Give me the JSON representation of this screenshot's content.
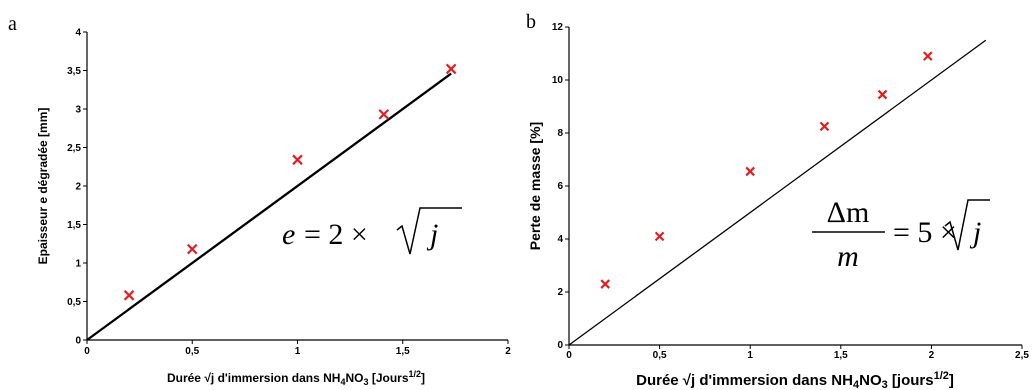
{
  "chart_data": [
    {
      "panel": "a",
      "type": "scatter",
      "xlabel": "Durée √j d'immersion dans NH₄NO₃ [Jours¹ᐟ²]",
      "ylabel": "Epaisseur e dégradée [mm]",
      "xlim": [
        0,
        2
      ],
      "ylim": [
        0,
        4
      ],
      "xticks": [
        "0",
        "0,5",
        "1",
        "1,5",
        "2"
      ],
      "yticks": [
        "0",
        "0,5",
        "1",
        "1,5",
        "2",
        "2,5",
        "3",
        "3,5",
        "4"
      ],
      "x": [
        0.2,
        0.5,
        1.0,
        1.41,
        1.73
      ],
      "y": [
        0.58,
        1.18,
        2.34,
        2.93,
        3.52
      ],
      "fit_line": {
        "slope": 2,
        "x_range": [
          0,
          1.73
        ]
      },
      "equation": "e = 2 × √j",
      "marker_color": "#e02020",
      "line_color": "#000000",
      "grid": false
    },
    {
      "panel": "b",
      "type": "scatter",
      "xlabel": "Durée √j d'immersion dans NH₄NO₃ [jours¹ᐟ²]",
      "ylabel": "Perte de masse [%]",
      "xlim": [
        0,
        2.5
      ],
      "ylim": [
        0,
        12
      ],
      "xticks": [
        "0",
        "0,5",
        "1",
        "1,5",
        "2",
        "2,5"
      ],
      "yticks": [
        "0",
        "2",
        "4",
        "6",
        "8",
        "10",
        "12"
      ],
      "x": [
        0.2,
        0.5,
        1.0,
        1.41,
        1.73,
        1.98
      ],
      "y": [
        2.3,
        4.1,
        6.55,
        8.25,
        9.45,
        10.9
      ],
      "fit_line": {
        "slope": 5,
        "x_range": [
          0,
          2.3
        ]
      },
      "equation": "Δm / m = 5 × √j",
      "marker_color": "#e02020",
      "line_color": "#000000",
      "grid": false
    }
  ],
  "labels": {
    "panel_a": "a",
    "panel_b": "b",
    "a_ylabel": "Epaisseur e dégradée [mm]",
    "b_ylabel": "Perte de masse [%]",
    "eq_a_lhs": "e",
    "eq_a_rhs": "= 2 ×",
    "eq_a_root": "j",
    "eq_b_num": "Δm",
    "eq_b_den": "m",
    "eq_b_rhs": "= 5 ×",
    "eq_b_root": "j",
    "xlabel_prefix": "Durée √j d'immersion dans NH",
    "xlabel_sub4": "4",
    "xlabel_no": "NO",
    "xlabel_sub3": "3",
    "a_xlabel_bracket": " [Jours",
    "b_xlabel_bracket": " [jours",
    "xlabel_sup": "1/2",
    "xlabel_close": "]"
  }
}
